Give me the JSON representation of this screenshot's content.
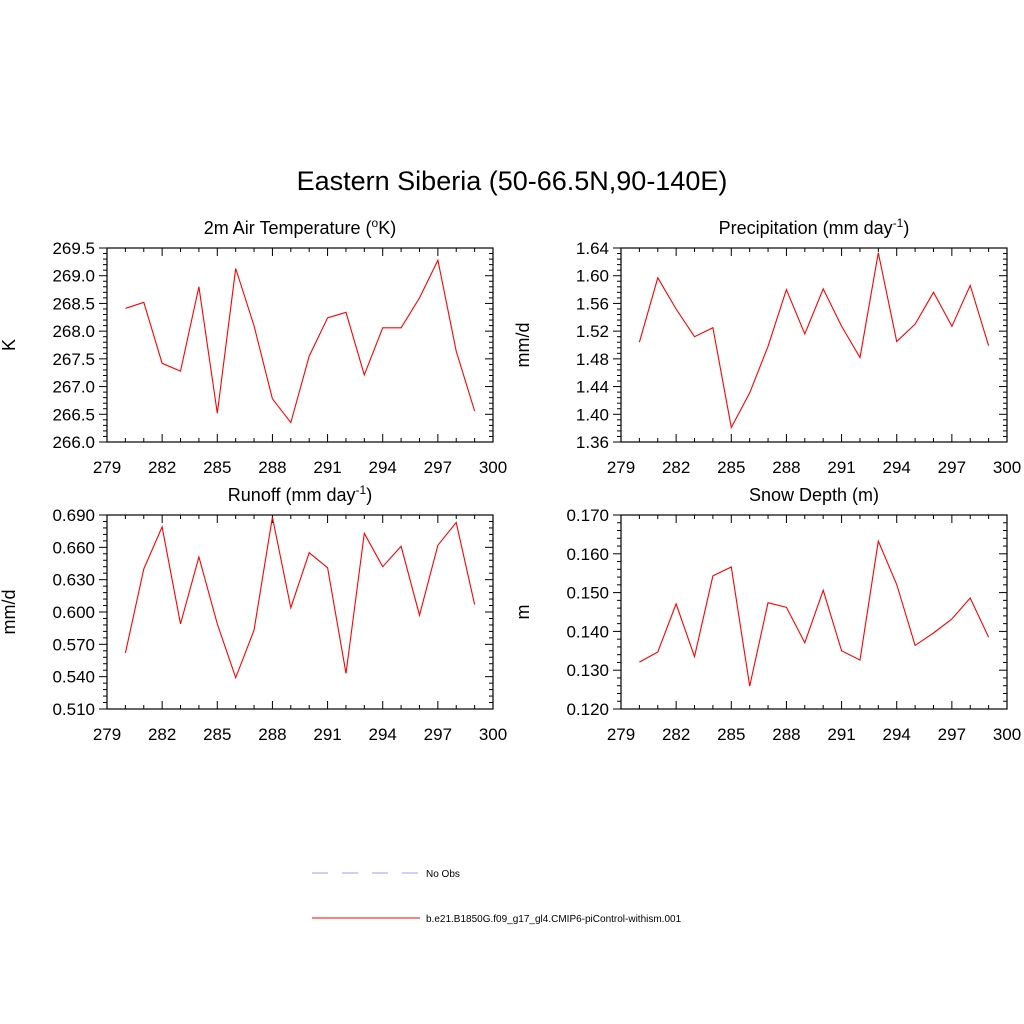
{
  "title": "Eastern Siberia (50-66.5N,90-140E)",
  "colors": {
    "model": "#ff0000",
    "obs": "#9b9bff",
    "axis": "#000000"
  },
  "legend": [
    {
      "label": "No Obs",
      "style": "dashed",
      "color": "#9b9bff"
    },
    {
      "label": "b.e21.B1850G.f09_g17_gl4.CMIP6-piControl-withism.001",
      "style": "solid",
      "color": "#ff0000"
    }
  ],
  "chart_data": [
    {
      "type": "line",
      "title_main": "2m Air Temperature (",
      "title_sup": "o",
      "title_tail": "K)",
      "ylabel": "K",
      "xlim": [
        279,
        300
      ],
      "xticks": [
        279,
        282,
        285,
        288,
        291,
        294,
        297,
        300
      ],
      "ylim": [
        266.0,
        269.5
      ],
      "yticks": [
        "266.0",
        "266.5",
        "267.0",
        "267.5",
        "268.0",
        "268.5",
        "269.0",
        "269.5"
      ],
      "series": [
        {
          "x": [
            280,
            281,
            282,
            283,
            284,
            285,
            286,
            287,
            288,
            289,
            290,
            291,
            292,
            293,
            294,
            295,
            296,
            297,
            298,
            299
          ],
          "values": [
            268.41,
            268.52,
            267.42,
            267.28,
            268.8,
            266.52,
            269.13,
            268.1,
            266.78,
            266.35,
            267.55,
            268.24,
            268.34,
            267.21,
            268.06,
            268.06,
            268.6,
            269.28,
            267.64,
            266.56
          ]
        }
      ]
    },
    {
      "type": "line",
      "title_main": "Precipitation (mm day",
      "title_sup": "-1",
      "title_tail": ")",
      "ylabel": "mm/d",
      "xlim": [
        279,
        300
      ],
      "xticks": [
        279,
        282,
        285,
        288,
        291,
        294,
        297,
        300
      ],
      "ylim": [
        1.36,
        1.64
      ],
      "yticks": [
        "1.36",
        "1.40",
        "1.44",
        "1.48",
        "1.52",
        "1.56",
        "1.60",
        "1.64"
      ],
      "series": [
        {
          "x": [
            280,
            281,
            282,
            283,
            284,
            285,
            286,
            287,
            288,
            289,
            290,
            291,
            292,
            293,
            294,
            295,
            296,
            297,
            298,
            299
          ],
          "values": [
            1.504,
            1.597,
            1.552,
            1.512,
            1.525,
            1.381,
            1.431,
            1.498,
            1.58,
            1.516,
            1.581,
            1.527,
            1.482,
            1.633,
            1.505,
            1.53,
            1.576,
            1.527,
            1.586,
            1.499
          ]
        }
      ]
    },
    {
      "type": "line",
      "title_main": "Runoff (mm day",
      "title_sup": "-1",
      "title_tail": ")",
      "ylabel": "mm/d",
      "xlim": [
        279,
        300
      ],
      "xticks": [
        279,
        282,
        285,
        288,
        291,
        294,
        297,
        300
      ],
      "ylim": [
        0.51,
        0.69
      ],
      "yticks": [
        "0.510",
        "0.540",
        "0.570",
        "0.600",
        "0.630",
        "0.660",
        "0.690"
      ],
      "series": [
        {
          "x": [
            280,
            281,
            282,
            283,
            284,
            285,
            286,
            287,
            288,
            289,
            290,
            291,
            292,
            293,
            294,
            295,
            296,
            297,
            298,
            299
          ],
          "values": [
            0.562,
            0.64,
            0.679,
            0.589,
            0.651,
            0.589,
            0.539,
            0.583,
            0.688,
            0.604,
            0.655,
            0.641,
            0.543,
            0.673,
            0.642,
            0.661,
            0.597,
            0.662,
            0.683,
            0.607
          ]
        }
      ]
    },
    {
      "type": "line",
      "title_main": "Snow Depth (m)",
      "title_sup": "",
      "title_tail": "",
      "ylabel": "m",
      "xlim": [
        279,
        300
      ],
      "xticks": [
        279,
        282,
        285,
        288,
        291,
        294,
        297,
        300
      ],
      "ylim": [
        0.12,
        0.17
      ],
      "yticks": [
        "0.120",
        "0.130",
        "0.140",
        "0.150",
        "0.160",
        "0.170"
      ],
      "series": [
        {
          "x": [
            280,
            281,
            282,
            283,
            284,
            285,
            286,
            287,
            288,
            289,
            290,
            291,
            292,
            293,
            294,
            295,
            296,
            297,
            298,
            299
          ],
          "values": [
            0.1321,
            0.1347,
            0.1471,
            0.1335,
            0.1543,
            0.1566,
            0.1259,
            0.1474,
            0.1462,
            0.1371,
            0.1506,
            0.135,
            0.1326,
            0.1633,
            0.1521,
            0.1364,
            0.1396,
            0.1432,
            0.1486,
            0.1385
          ]
        }
      ]
    }
  ]
}
